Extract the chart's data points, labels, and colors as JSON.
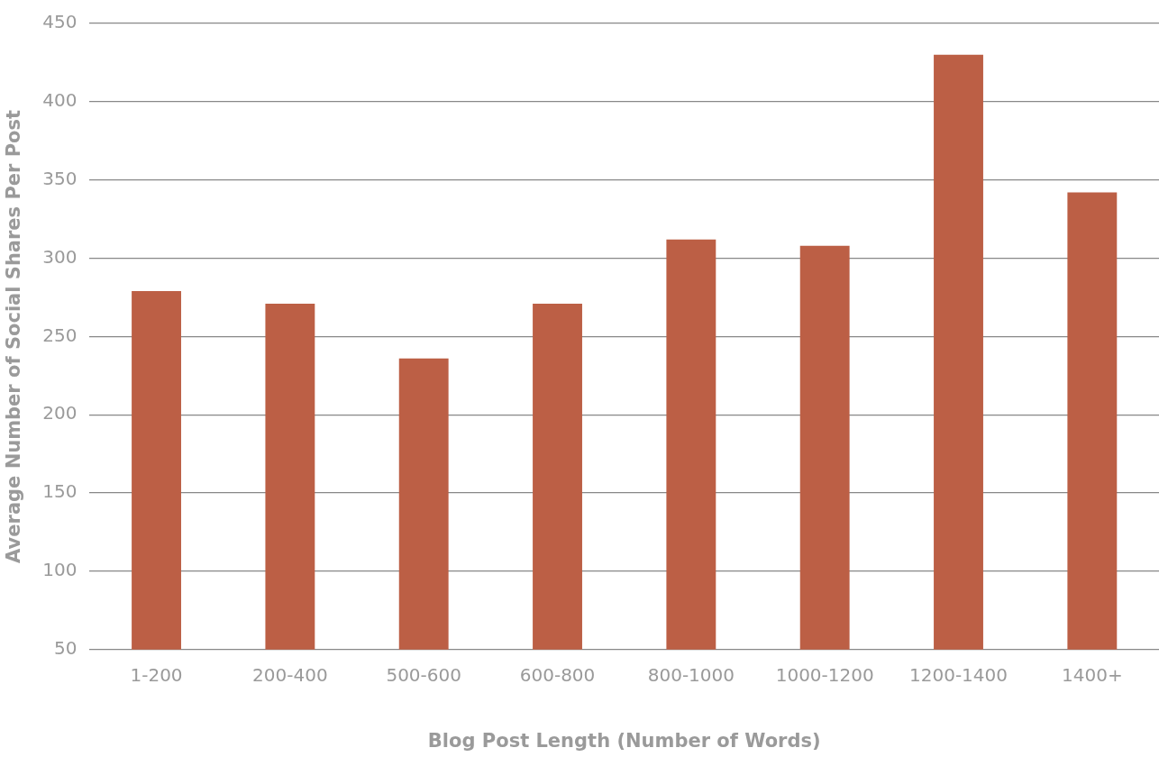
{
  "chart_data": {
    "type": "bar",
    "xlabel": "Blog Post Length (Number of Words)",
    "ylabel": "Average Number of Social Shares Per Post",
    "categories": [
      "1-200",
      "200-400",
      "500-600",
      "600-800",
      "800-1000",
      "1000-1200",
      "1200-1400",
      "1400+"
    ],
    "values": [
      279,
      271,
      236,
      271,
      312,
      308,
      430,
      342
    ],
    "color": "#bc5f45",
    "ylim": [
      50,
      450
    ],
    "yticks": [
      50,
      100,
      150,
      200,
      250,
      300,
      350,
      400,
      450
    ],
    "grid": "y",
    "legend": false
  }
}
